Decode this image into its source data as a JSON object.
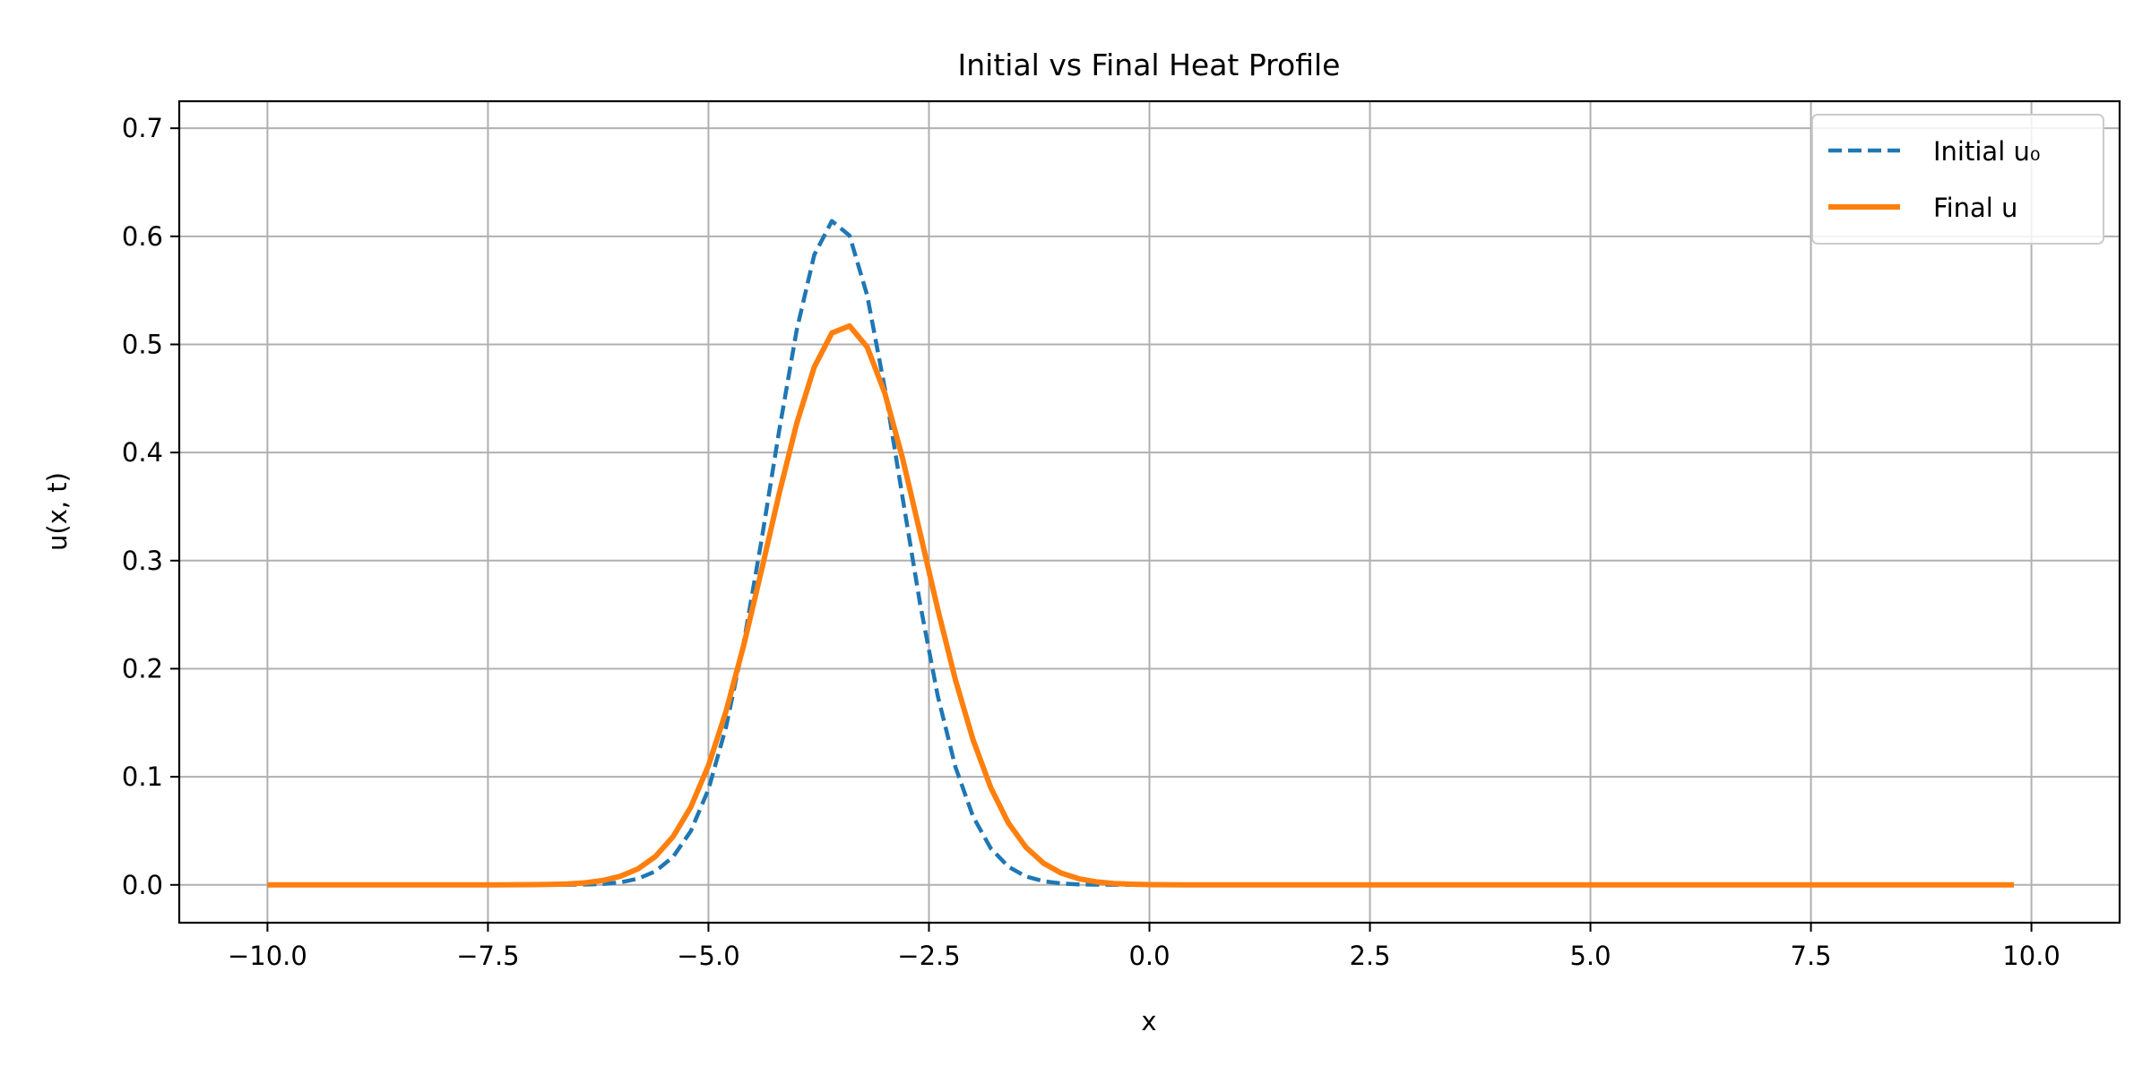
{
  "chart_data": {
    "type": "line",
    "title": "Initial vs Final Heat Profile",
    "xlabel": "x",
    "ylabel": "u(x, t)",
    "xlim": [
      -11,
      11
    ],
    "ylim": [
      -0.035,
      0.725
    ],
    "xticks": [
      -10,
      -7.5,
      -5,
      -2.5,
      0,
      2.5,
      5,
      7.5,
      10
    ],
    "xtick_labels": [
      "−10.0",
      "−7.5",
      "−5.0",
      "−2.5",
      "0.0",
      "2.5",
      "5.0",
      "7.5",
      "10.0"
    ],
    "yticks": [
      0,
      0.1,
      0.2,
      0.3,
      0.4,
      0.5,
      0.6,
      0.7
    ],
    "ytick_labels": [
      "0.0",
      "0.1",
      "0.2",
      "0.3",
      "0.4",
      "0.5",
      "0.6",
      "0.7"
    ],
    "grid": true,
    "legend_position": "top-right",
    "x": [
      -10.0,
      -9.8,
      -9.6,
      -9.4,
      -9.2,
      -9.0,
      -8.8,
      -8.6,
      -8.4,
      -8.2,
      -8.0,
      -7.8,
      -7.6,
      -7.4,
      -7.2,
      -7.0,
      -6.8,
      -6.6,
      -6.4,
      -6.2,
      -6.0,
      -5.8,
      -5.6,
      -5.4,
      -5.2,
      -5.0,
      -4.8,
      -4.6,
      -4.4,
      -4.2,
      -4.0,
      -3.8,
      -3.6,
      -3.4,
      -3.2,
      -3.0,
      -2.8,
      -2.6,
      -2.4,
      -2.2,
      -2.0,
      -1.8,
      -1.6,
      -1.4,
      -1.2,
      -1.0,
      -0.8,
      -0.6,
      -0.4,
      -0.2,
      0.0,
      0.2,
      0.4,
      0.6,
      0.8,
      1.0,
      1.2,
      1.4,
      1.6,
      1.8,
      2.0,
      2.2,
      2.4,
      2.6,
      2.8,
      3.0,
      3.2,
      3.4,
      3.6,
      3.8,
      4.0,
      4.2,
      4.4,
      4.6,
      4.8,
      5.0,
      5.2,
      5.4,
      5.6,
      5.8,
      6.0,
      6.2,
      6.4,
      6.6,
      6.8,
      7.0,
      7.2,
      7.4,
      7.6,
      7.8,
      8.0,
      8.2,
      8.4,
      8.6,
      8.8,
      9.0,
      9.2,
      9.4,
      9.6,
      9.8
    ],
    "series": [
      {
        "name": "Initial u₀",
        "color": "#1f77b4",
        "style": "dashed",
        "values": [
          0.0,
          0.0,
          0.0,
          0.0,
          0.0,
          0.0,
          0.0,
          0.0,
          0.0,
          0.0,
          0.0,
          0.0,
          0.0,
          0.0,
          0.0,
          0.0,
          0.0,
          0.0001,
          0.0003,
          0.0009,
          0.0023,
          0.0057,
          0.0126,
          0.026,
          0.0498,
          0.0885,
          0.1461,
          0.2238,
          0.318,
          0.4194,
          0.5132,
          0.5828,
          0.6142,
          0.6007,
          0.5452,
          0.4591,
          0.3587,
          0.26,
          0.1749,
          0.1091,
          0.0632,
          0.0339,
          0.0169,
          0.0078,
          0.0034,
          0.0013,
          0.0005,
          0.0002,
          0.0001,
          0.0,
          0.0,
          0.0,
          0.0,
          0.0,
          0.0,
          0.0,
          0.0,
          0.0,
          0.0,
          0.0,
          0.0,
          0.0,
          0.0,
          0.0,
          0.0,
          0.0,
          0.0,
          0.0,
          0.0,
          0.0,
          0.0,
          0.0,
          0.0,
          0.0,
          0.0,
          0.0,
          0.0,
          0.0,
          0.0,
          0.0,
          0.0,
          0.0,
          0.0,
          0.0,
          0.0,
          0.0,
          0.0,
          0.0,
          0.0,
          0.0,
          0.0,
          0.0,
          0.0,
          0.0,
          0.0,
          0.0,
          0.0,
          0.0,
          0.0,
          0.0
        ]
      },
      {
        "name": "Final u",
        "color": "#ff7f0e",
        "style": "solid",
        "values": [
          0.0,
          0.0,
          0.0,
          0.0,
          0.0,
          0.0,
          0.0,
          0.0,
          0.0,
          0.0,
          0.0,
          0.0,
          0.0,
          0.0,
          0.0001,
          0.0002,
          0.0004,
          0.0009,
          0.0019,
          0.004,
          0.0079,
          0.0147,
          0.0263,
          0.0447,
          0.0721,
          0.1105,
          0.1606,
          0.2217,
          0.2905,
          0.3614,
          0.4269,
          0.479,
          0.5106,
          0.5171,
          0.4975,
          0.4547,
          0.3948,
          0.3256,
          0.2551,
          0.1898,
          0.1342,
          0.0901,
          0.0574,
          0.0348,
          0.02,
          0.0109,
          0.0057,
          0.0028,
          0.0013,
          0.0006,
          0.0002,
          0.0001,
          0.0,
          0.0,
          0.0,
          0.0,
          0.0,
          0.0,
          0.0,
          0.0,
          0.0,
          0.0,
          0.0,
          0.0,
          0.0,
          0.0,
          0.0,
          0.0,
          0.0,
          0.0,
          0.0,
          0.0,
          0.0,
          0.0,
          0.0,
          0.0,
          0.0,
          0.0,
          0.0,
          0.0,
          0.0,
          0.0,
          0.0,
          0.0,
          0.0,
          0.0,
          0.0,
          0.0,
          0.0,
          0.0,
          0.0,
          0.0,
          0.0,
          0.0,
          0.0,
          0.0,
          0.0,
          0.0,
          0.0,
          0.0
        ]
      }
    ]
  }
}
